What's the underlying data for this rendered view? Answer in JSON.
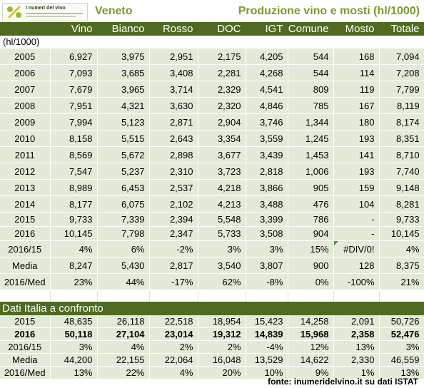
{
  "header": {
    "logo_text": "I numeri del vino",
    "region": "Veneto",
    "title": "Produzione vino e mosti (hl/1000)"
  },
  "columns": [
    "",
    "Vino",
    "Bianco",
    "Rosso",
    "DOC",
    "IGT",
    "Comune",
    "Mosto",
    "Totale"
  ],
  "unit_label": "(hl/1000)",
  "years": [
    {
      "label": "2005",
      "cells": [
        "6,927",
        "3,975",
        "2,951",
        "2,175",
        "4,205",
        "544",
        "168",
        "7,094"
      ]
    },
    {
      "label": "2006",
      "cells": [
        "7,093",
        "3,685",
        "3,408",
        "2,281",
        "4,268",
        "544",
        "114",
        "7,208"
      ]
    },
    {
      "label": "2007",
      "cells": [
        "7,679",
        "3,965",
        "3,714",
        "2,329",
        "4,541",
        "809",
        "119",
        "7,799"
      ]
    },
    {
      "label": "2008",
      "cells": [
        "7,951",
        "4,321",
        "3,630",
        "2,320",
        "4,846",
        "785",
        "167",
        "8,119"
      ]
    },
    {
      "label": "2009",
      "cells": [
        "7,994",
        "5,123",
        "2,871",
        "2,904",
        "3,746",
        "1,344",
        "180",
        "8,174"
      ]
    },
    {
      "label": "2010",
      "cells": [
        "8,158",
        "5,515",
        "2,643",
        "3,354",
        "3,559",
        "1,245",
        "193",
        "8,351"
      ]
    },
    {
      "label": "2011",
      "cells": [
        "8,569",
        "5,672",
        "2,898",
        "3,677",
        "3,439",
        "1,453",
        "141",
        "8,710"
      ]
    },
    {
      "label": "2012",
      "cells": [
        "7,547",
        "5,237",
        "2,310",
        "3,723",
        "2,818",
        "1,006",
        "193",
        "7,740"
      ]
    },
    {
      "label": "2013",
      "cells": [
        "8,989",
        "6,453",
        "2,537",
        "4,218",
        "3,866",
        "905",
        "159",
        "9,148"
      ]
    },
    {
      "label": "2014",
      "cells": [
        "8,177",
        "6,075",
        "2,102",
        "4,213",
        "3,488",
        "476",
        "104",
        "8,281"
      ]
    },
    {
      "label": "2015",
      "cells": [
        "9,733",
        "7,339",
        "2,394",
        "5,548",
        "3,399",
        "786",
        "-",
        "9,733"
      ]
    },
    {
      "label": "2016",
      "cells": [
        "10,145",
        "7,798",
        "2,347",
        "5,733",
        "3,508",
        "904",
        "-",
        "10,145"
      ]
    }
  ],
  "stats": [
    {
      "label": "2016/15",
      "cells": [
        "4%",
        "6%",
        "-2%",
        "3%",
        "3%",
        "15%",
        "#DIV/0!",
        "4%"
      ]
    },
    {
      "label": "Media",
      "cells": [
        "8,247",
        "5,430",
        "2,817",
        "3,540",
        "3,807",
        "900",
        "128",
        "8,375"
      ]
    },
    {
      "label": "2016/Med",
      "cells": [
        "23%",
        "44%",
        "-17%",
        "62%",
        "-8%",
        "0%",
        "-100%",
        "21%"
      ]
    }
  ],
  "italia_title": "Dati Italia a confronto",
  "italia": [
    {
      "label": "2015",
      "bold": false,
      "cells": [
        "48,635",
        "26,118",
        "22,518",
        "18,954",
        "15,423",
        "14,258",
        "2,091",
        "50,726"
      ]
    },
    {
      "label": "2016",
      "bold": true,
      "cells": [
        "50,118",
        "27,104",
        "23,014",
        "19,312",
        "14,839",
        "15,968",
        "2,358",
        "52,476"
      ]
    },
    {
      "label": "2016/15",
      "bold": false,
      "cells": [
        "3%",
        "4%",
        "2%",
        "2%",
        "-4%",
        "12%",
        "13%",
        "3%"
      ]
    },
    {
      "label": "Media",
      "bold": false,
      "cells": [
        "44,200",
        "22,155",
        "22,064",
        "16,048",
        "13,529",
        "14,622",
        "2,330",
        "46,559"
      ]
    },
    {
      "label": "2016/Med",
      "bold": false,
      "cells": [
        "13%",
        "22%",
        "4%",
        "20%",
        "10%",
        "9%",
        "1%",
        "13%"
      ]
    }
  ],
  "source": "fonte: inumeridelvino.it su dati ISTAT",
  "colors": {
    "header_green": "#4f6a21",
    "title_green": "#7a9a2b",
    "row_bg": "#e4ead8"
  }
}
